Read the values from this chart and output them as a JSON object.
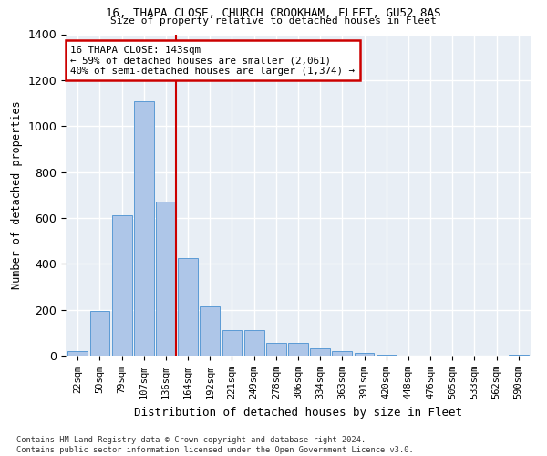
{
  "title1": "16, THAPA CLOSE, CHURCH CROOKHAM, FLEET, GU52 8AS",
  "title2": "Size of property relative to detached houses in Fleet",
  "xlabel": "Distribution of detached houses by size in Fleet",
  "ylabel": "Number of detached properties",
  "bar_labels": [
    "22sqm",
    "50sqm",
    "79sqm",
    "107sqm",
    "136sqm",
    "164sqm",
    "192sqm",
    "221sqm",
    "249sqm",
    "278sqm",
    "306sqm",
    "334sqm",
    "363sqm",
    "391sqm",
    "420sqm",
    "448sqm",
    "476sqm",
    "505sqm",
    "533sqm",
    "562sqm",
    "590sqm"
  ],
  "bar_values": [
    20,
    195,
    610,
    1110,
    670,
    425,
    215,
    110,
    110,
    55,
    55,
    30,
    20,
    10,
    5,
    0,
    0,
    0,
    0,
    0,
    5
  ],
  "bar_color": "#aec6e8",
  "bar_edge_color": "#5b9bd5",
  "background_color": "#e8eef5",
  "annotation_text": "16 THAPA CLOSE: 143sqm\n← 59% of detached houses are smaller (2,061)\n40% of semi-detached houses are larger (1,374) →",
  "vline_color": "#cc0000",
  "annotation_box_color": "#ffffff",
  "annotation_box_edge_color": "#cc0000",
  "ylim": [
    0,
    1400
  ],
  "footnote": "Contains HM Land Registry data © Crown copyright and database right 2024.\nContains public sector information licensed under the Open Government Licence v3.0."
}
